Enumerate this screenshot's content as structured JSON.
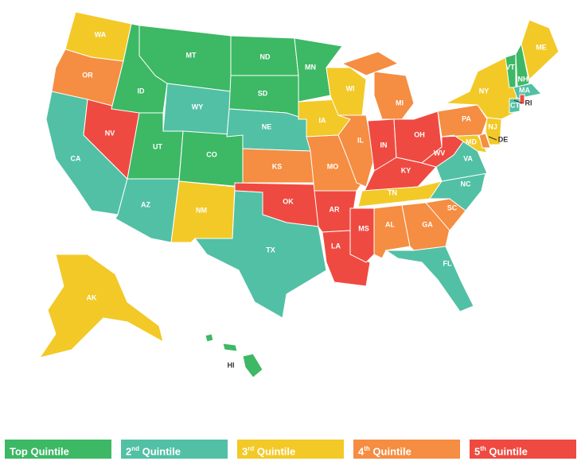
{
  "colors": {
    "q1": "#3db865",
    "q2": "#52c0a5",
    "q3": "#f2c927",
    "q4": "#f58d42",
    "q5": "#ef4a41"
  },
  "legend": [
    {
      "key": "q1",
      "label": "Top Quintile",
      "sup": "",
      "rest": ""
    },
    {
      "key": "q2",
      "label": "2",
      "sup": "nd",
      "rest": " Quintile"
    },
    {
      "key": "q3",
      "label": "3",
      "sup": "rd",
      "rest": " Quintile"
    },
    {
      "key": "q4",
      "label": "4",
      "sup": "th",
      "rest": " Quintile"
    },
    {
      "key": "q5",
      "label": "5",
      "sup": "th",
      "rest": " Quintile"
    }
  ],
  "states": {
    "WA": "q3",
    "OR": "q4",
    "CA": "q2",
    "NV": "q5",
    "ID": "q1",
    "MT": "q1",
    "WY": "q2",
    "UT": "q1",
    "AZ": "q2",
    "CO": "q1",
    "NM": "q3",
    "ND": "q1",
    "SD": "q1",
    "NE": "q2",
    "KS": "q4",
    "OK": "q5",
    "TX": "q2",
    "MN": "q1",
    "IA": "q3",
    "MO": "q4",
    "AR": "q5",
    "LA": "q5",
    "WI": "q3",
    "IL": "q4",
    "MI": "q4",
    "IN": "q5",
    "OH": "q5",
    "KY": "q5",
    "TN": "q3",
    "MS": "q5",
    "AL": "q4",
    "GA": "q4",
    "FL": "q2",
    "SC": "q4",
    "NC": "q2",
    "VA": "q2",
    "WV": "q5",
    "PA": "q4",
    "NY": "q3",
    "NJ": "q3",
    "MD": "q3",
    "DE": "q4",
    "VT": "q1",
    "NH": "q1",
    "ME": "q3",
    "MA": "q2",
    "CT": "q2",
    "RI": "q5",
    "AK": "q3",
    "HI": "q1"
  },
  "labels": {
    "NJ": "NJ",
    "MD": "MD",
    "DE": "DE",
    "RI": "RI"
  }
}
